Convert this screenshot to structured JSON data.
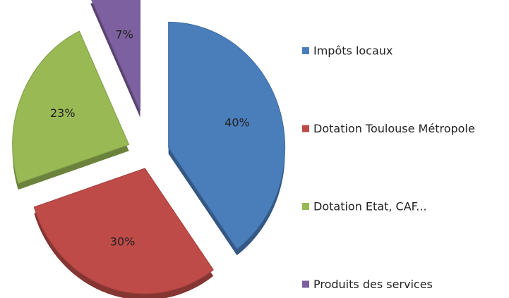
{
  "chart_data": {
    "type": "pie",
    "categories": [
      "Impôts locaux",
      "Dotation Toulouse Métropole",
      "Dotation Etat, CAF...",
      "Produits des services"
    ],
    "values": [
      40,
      30,
      23,
      7
    ],
    "value_labels": [
      "40%",
      "30%",
      "23%",
      "7%"
    ],
    "colors": [
      "#4a7ebb",
      "#be4b48",
      "#98b954",
      "#7d60a0"
    ],
    "legend": "right"
  }
}
